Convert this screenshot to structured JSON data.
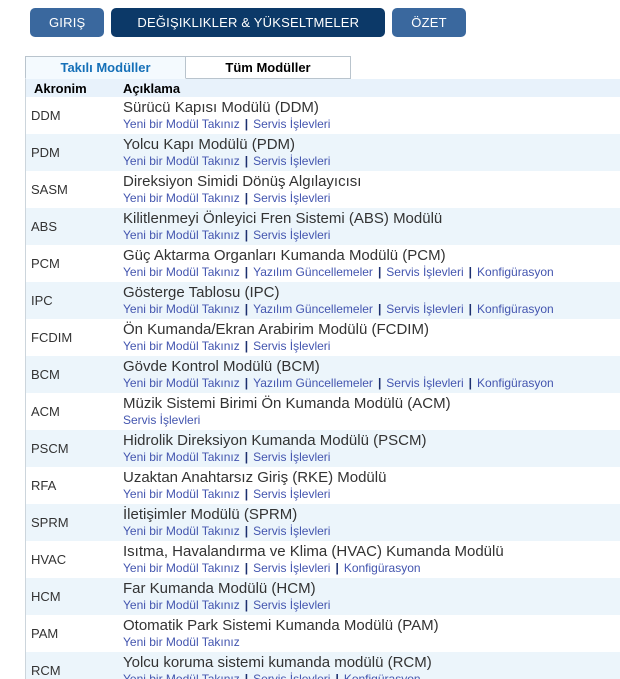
{
  "toolbar": {
    "buttons": [
      {
        "label": "GIRIŞ",
        "active": false
      },
      {
        "label": "DEĞIŞIKLIKLER & YÜKSELTMELER",
        "active": true
      },
      {
        "label": "ÖZET",
        "active": false
      }
    ]
  },
  "tabs": [
    {
      "label": "Takılı Modüller",
      "active": true
    },
    {
      "label": "Tüm Modüller",
      "active": false
    }
  ],
  "table": {
    "headers": [
      "Akronim",
      "Açıklama"
    ],
    "link_separator": "|",
    "rows": [
      {
        "acronym": "DDM",
        "description": "Sürücü Kapısı Modülü (DDM)",
        "links": [
          "Yeni bir Modül Takınız",
          "Servis İşlevleri"
        ]
      },
      {
        "acronym": "PDM",
        "description": "Yolcu Kapı Modülü (PDM)",
        "links": [
          "Yeni bir Modül Takınız",
          "Servis İşlevleri"
        ]
      },
      {
        "acronym": "SASM",
        "description": "Direksiyon Simidi Dönüş Algılayıcısı",
        "links": [
          "Yeni bir Modül Takınız",
          "Servis İşlevleri"
        ]
      },
      {
        "acronym": "ABS",
        "description": "Kilitlenmeyi Önleyici Fren Sistemi (ABS) Modülü",
        "links": [
          "Yeni bir Modül Takınız",
          "Servis İşlevleri"
        ]
      },
      {
        "acronym": "PCM",
        "description": "Güç Aktarma Organları Kumanda Modülü (PCM)",
        "links": [
          "Yeni bir Modül Takınız",
          "Yazılım Güncellemeler",
          "Servis İşlevleri",
          "Konfigürasyon"
        ]
      },
      {
        "acronym": "IPC",
        "description": "Gösterge Tablosu (IPC)",
        "links": [
          "Yeni bir Modül Takınız",
          "Yazılım Güncellemeler",
          "Servis İşlevleri",
          "Konfigürasyon"
        ]
      },
      {
        "acronym": "FCDIM",
        "description": "Ön Kumanda/Ekran Arabirim Modülü (FCDIM)",
        "links": [
          "Yeni bir Modül Takınız",
          "Servis İşlevleri"
        ]
      },
      {
        "acronym": "BCM",
        "description": "Gövde Kontrol Modülü (BCM)",
        "links": [
          "Yeni bir Modül Takınız",
          "Yazılım Güncellemeler",
          "Servis İşlevleri",
          "Konfigürasyon"
        ]
      },
      {
        "acronym": "ACM",
        "description": "Müzik Sistemi Birimi Ön Kumanda Modülü (ACM)",
        "links": [
          "Servis İşlevleri"
        ]
      },
      {
        "acronym": "PSCM",
        "description": "Hidrolik Direksiyon Kumanda Modülü (PSCM)",
        "links": [
          "Yeni bir Modül Takınız",
          "Servis İşlevleri"
        ]
      },
      {
        "acronym": "RFA",
        "description": "Uzaktan Anahtarsız Giriş (RKE) Modülü",
        "links": [
          "Yeni bir Modül Takınız",
          "Servis İşlevleri"
        ]
      },
      {
        "acronym": "SPRM",
        "description": "İletişimler Modülü (SPRM)",
        "links": [
          "Yeni bir Modül Takınız",
          "Servis İşlevleri"
        ]
      },
      {
        "acronym": "HVAC",
        "description": "Isıtma, Havalandırma ve Klima (HVAC) Kumanda Modülü",
        "links": [
          "Yeni bir Modül Takınız",
          "Servis İşlevleri",
          "Konfigürasyon"
        ]
      },
      {
        "acronym": "HCM",
        "description": "Far Kumanda Modülü (HCM)",
        "links": [
          "Yeni bir Modül Takınız",
          "Servis İşlevleri"
        ]
      },
      {
        "acronym": "PAM",
        "description": "Otomatik Park Sistemi Kumanda Modülü (PAM)",
        "links": [
          "Yeni bir Modül Takınız"
        ]
      },
      {
        "acronym": "RCM",
        "description": "Yolcu koruma sistemi kumanda modülü (RCM)",
        "links": [
          "Yeni bir Modül Takınız",
          "Servis İşlevleri",
          "Konfigürasyon"
        ]
      }
    ]
  },
  "colors": {
    "button_blue": "#3a689e",
    "button_dark_active": "#0c3968",
    "active_tab_text": "#1570b8",
    "stripe_background": "#ecf5fb",
    "header_background": "#e8f2fb",
    "link_color": "#4355af"
  }
}
